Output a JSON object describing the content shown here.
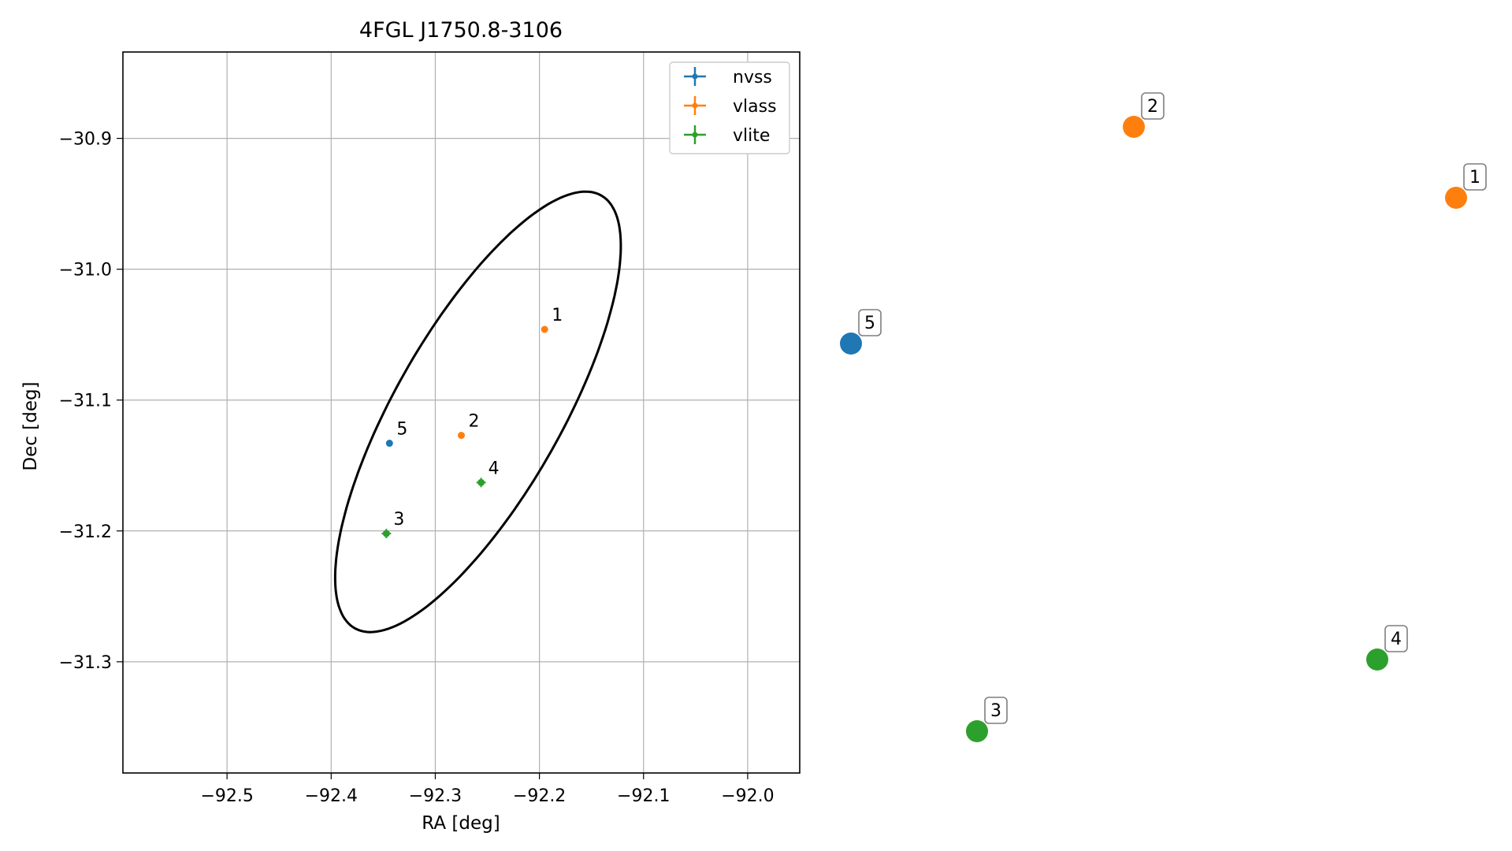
{
  "chart_data": {
    "type": "scatter",
    "title": "4FGL J1750.8-3106",
    "xlabel": "RA [deg]",
    "ylabel": "Dec [deg]",
    "xlim": [
      -92.6,
      -91.95
    ],
    "ylim": [
      -31.385,
      -30.834
    ],
    "xticks": [
      -92.5,
      -92.4,
      -92.3,
      -92.2,
      -92.1,
      -92.0
    ],
    "yticks": [
      -30.9,
      -31.0,
      -31.1,
      -31.2,
      -31.3
    ],
    "xtick_labels": [
      "−92.5",
      "−92.4",
      "−92.3",
      "−92.2",
      "−92.1",
      "−92.0"
    ],
    "ytick_labels": [
      "−30.9",
      "−31.0",
      "−31.1",
      "−31.2",
      "−31.3"
    ],
    "grid": true,
    "legend_position": "top-right",
    "colors": {
      "nvss": "#1f77b4",
      "vlass": "#ff7f0e",
      "vlite": "#2ca02c"
    },
    "series": [
      {
        "name": "nvss",
        "color": "#1f77b4",
        "points": [
          {
            "id": "5",
            "ra": -92.344,
            "dec": -31.133
          }
        ]
      },
      {
        "name": "vlass",
        "color": "#ff7f0e",
        "points": [
          {
            "id": "1",
            "ra": -92.195,
            "dec": -31.046
          },
          {
            "id": "2",
            "ra": -92.275,
            "dec": -31.127
          }
        ]
      },
      {
        "name": "vlite",
        "color": "#2ca02c",
        "points": [
          {
            "id": "3",
            "ra": -92.347,
            "dec": -31.202
          },
          {
            "id": "4",
            "ra": -92.256,
            "dec": -31.163
          }
        ]
      }
    ],
    "ellipse": {
      "center_ra": -92.259,
      "center_dec": -31.109,
      "semi_major": 0.194,
      "semi_minor": 0.067,
      "angle_deg": 58
    }
  },
  "marker_panel": {
    "markers": [
      {
        "id": "2",
        "series": "vlass"
      },
      {
        "id": "1",
        "series": "vlass"
      },
      {
        "id": "5",
        "series": "nvss"
      },
      {
        "id": "4",
        "series": "vlite"
      },
      {
        "id": "3",
        "series": "vlite"
      }
    ]
  }
}
